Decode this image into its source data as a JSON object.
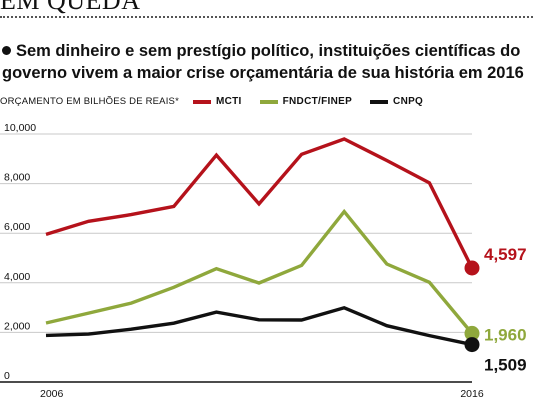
{
  "headline": "EM QUEDA",
  "subhead": "Sem dinheiro e sem prestígio político, instituições científicas do governo vivem a maior crise orçamentária de sua história em 2016",
  "chart_data": {
    "type": "line",
    "unit_label": "ORÇAMENTO EM BILHÕES DE REAIS*",
    "x": [
      2006,
      2007,
      2008,
      2009,
      2010,
      2011,
      2012,
      2013,
      2014,
      2015,
      2016
    ],
    "x_tick_labels": [
      "2006",
      "2016"
    ],
    "ylim": [
      0,
      10000
    ],
    "y_ticks": [
      0,
      2000,
      4000,
      6000,
      8000,
      10000
    ],
    "y_tick_labels": [
      "0",
      "2,000",
      "4,000",
      "6,000",
      "8,000",
      "10,000"
    ],
    "grid": true,
    "legend_position": "top",
    "series": [
      {
        "name": "MCTI",
        "color": "#b5121b",
        "end_label": "4,597",
        "values": [
          5950,
          6480,
          6750,
          7080,
          9150,
          7180,
          9180,
          9800,
          8930,
          8030,
          4597
        ]
      },
      {
        "name": "FNDCT/FINEP",
        "color": "#8fa83c",
        "end_label": "1,960",
        "values": [
          2380,
          2780,
          3180,
          3820,
          4570,
          3990,
          4700,
          6870,
          4760,
          4020,
          1960
        ]
      },
      {
        "name": "CNPQ",
        "color": "#111111",
        "end_label": "1,509",
        "values": [
          1880,
          1930,
          2130,
          2370,
          2820,
          2510,
          2500,
          2990,
          2270,
          1870,
          1509
        ]
      }
    ]
  }
}
